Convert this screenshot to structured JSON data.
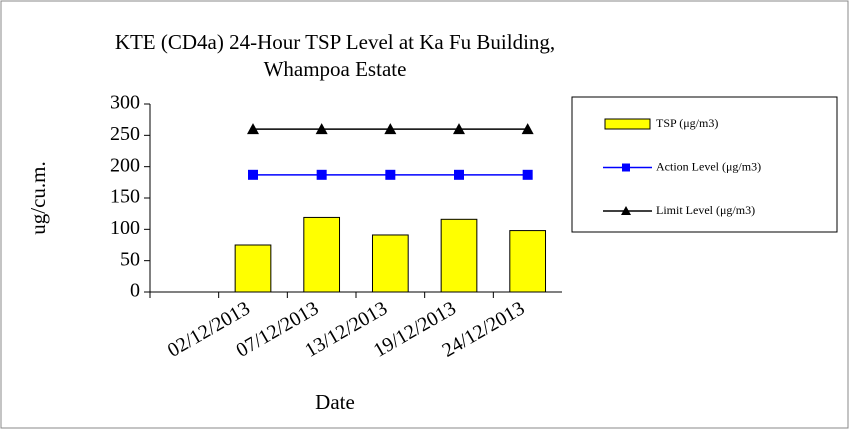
{
  "chart_data": {
    "type": "bar",
    "title": [
      "KTE  (CD4a) 24-Hour TSP Level at Ka Fu Building,",
      "Whampoa Estate"
    ],
    "x_label": "Date",
    "y_label": "ug/cu.m.",
    "categories": [
      null,
      "02/12/2013",
      "07/12/2013",
      "13/12/2013",
      "19/12/2013",
      "24/12/2013"
    ],
    "series": [
      {
        "name": "TSP (μg/m3)",
        "type": "bar",
        "color": "#ffff00",
        "values": [
          null,
          75,
          119,
          91,
          116,
          98
        ]
      },
      {
        "name": "Action Level (μg/m3)",
        "type": "line",
        "marker": "square",
        "color": "#0000ff",
        "values": [
          null,
          187,
          187,
          187,
          187,
          187
        ]
      },
      {
        "name": "Limit Level (μg/m3)",
        "type": "line",
        "marker": "triangle",
        "color": "#000000",
        "values": [
          null,
          260,
          260,
          260,
          260,
          260
        ]
      }
    ],
    "ylim": [
      0,
      300
    ],
    "yticks": [
      0,
      50,
      100,
      150,
      200,
      250,
      300
    ],
    "grid": false,
    "legend": "right"
  }
}
